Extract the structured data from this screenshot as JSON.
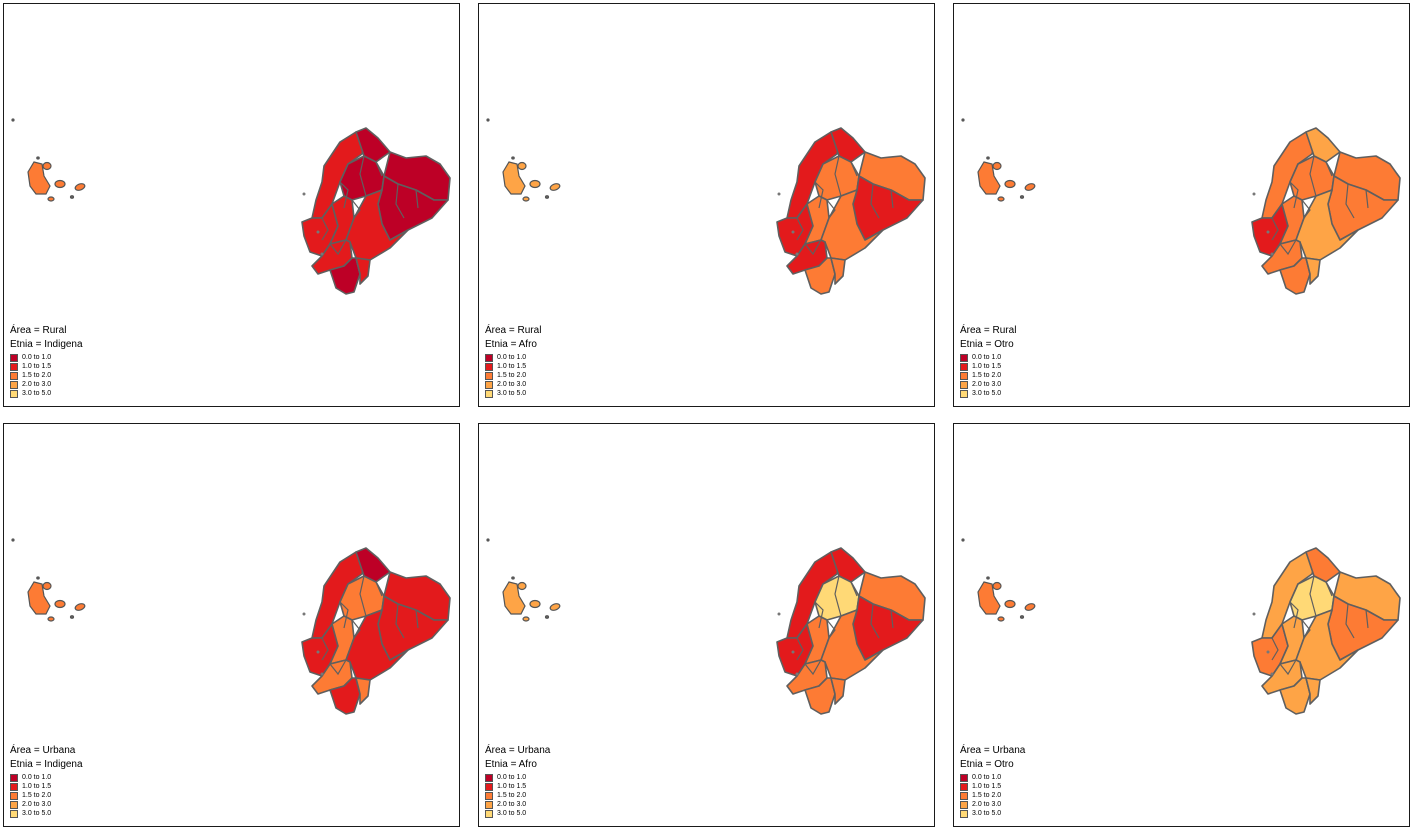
{
  "legend_classes": [
    {
      "label": "0.0 to 1.0",
      "color": "#bd0026"
    },
    {
      "label": "1.0 to 1.5",
      "color": "#e31a1c"
    },
    {
      "label": "1.5 to 2.0",
      "color": "#fd7b34"
    },
    {
      "label": "2.0 to 3.0",
      "color": "#fea446"
    },
    {
      "label": "3.0 to 5.0",
      "color": "#ffd976"
    }
  ],
  "panels": [
    {
      "area": "Área = Rural",
      "etnia": "Etnia = Indigena",
      "regions": {
        "galapagos": 2,
        "nw": 1,
        "n": 0,
        "ne": 0,
        "w": 1,
        "c": 0,
        "cw": 1,
        "e": 0,
        "se": 1,
        "sw": 1,
        "s": 0,
        "sc": 1
      }
    },
    {
      "area": "Área = Rural",
      "etnia": "Etnia = Afro",
      "regions": {
        "galapagos": 3,
        "nw": 1,
        "n": 1,
        "ne": 2,
        "w": 1,
        "c": 2,
        "cw": 2,
        "e": 1,
        "se": 2,
        "sw": 1,
        "s": 2,
        "sc": 2
      }
    },
    {
      "area": "Área = Rural",
      "etnia": "Etnia = Otro",
      "regions": {
        "galapagos": 2,
        "nw": 2,
        "n": 3,
        "ne": 2,
        "w": 1,
        "c": 2,
        "cw": 2,
        "e": 2,
        "se": 3,
        "sw": 2,
        "s": 2,
        "sc": 3
      }
    },
    {
      "area": "Área = Urbana",
      "etnia": "Etnia = Indigena",
      "regions": {
        "galapagos": 2,
        "nw": 1,
        "n": 0,
        "ne": 1,
        "w": 1,
        "c": 2,
        "cw": 2,
        "e": 1,
        "se": 1,
        "sw": 2,
        "s": 1,
        "sc": 2
      }
    },
    {
      "area": "Área = Urbana",
      "etnia": "Etnia = Afro",
      "regions": {
        "galapagos": 3,
        "nw": 1,
        "n": 1,
        "ne": 2,
        "w": 1,
        "c": 4,
        "cw": 2,
        "e": 1,
        "se": 2,
        "sw": 2,
        "s": 2,
        "sc": 2
      }
    },
    {
      "area": "Área = Urbana",
      "etnia": "Etnia = Otro",
      "regions": {
        "galapagos": 2,
        "nw": 3,
        "n": 2,
        "ne": 3,
        "w": 2,
        "c": 4,
        "cw": 3,
        "e": 2,
        "se": 3,
        "sw": 3,
        "s": 3,
        "sc": 3
      }
    }
  ]
}
